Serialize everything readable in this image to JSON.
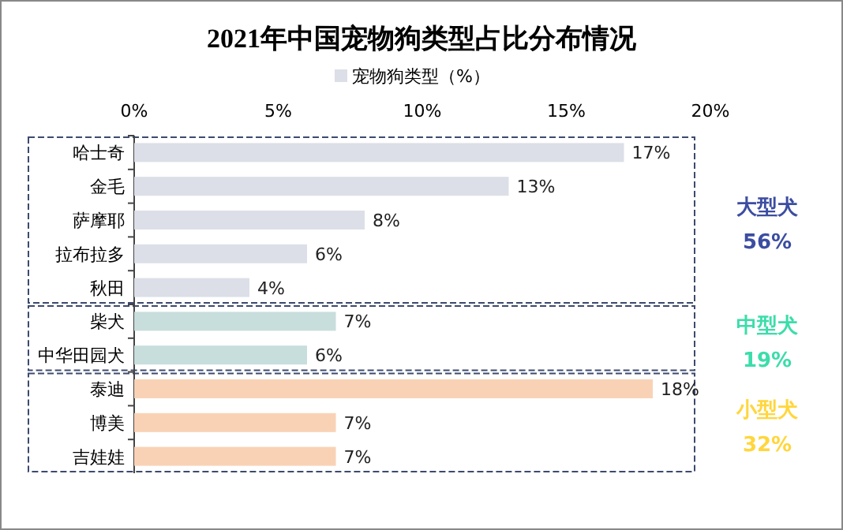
{
  "chart_data": {
    "type": "bar",
    "orientation": "horizontal",
    "title": "2021年中国宠物狗类型占比分布情况",
    "categories": [
      "哈士奇",
      "金毛",
      "萨摩耶",
      "拉布拉多",
      "秋田",
      "柴犬",
      "中华田园犬",
      "泰迪",
      "博美",
      "吉娃娃"
    ],
    "series": [
      {
        "name": "宠物狗类型（%）",
        "color": "#dcdfe7",
        "values": [
          17,
          13,
          8,
          6,
          4,
          7,
          6,
          18,
          7,
          7
        ],
        "colors": [
          "#dcdfe7",
          "#dcdfe7",
          "#dcdfe7",
          "#dcdfe7",
          "#dcdfe7",
          "#c8dedc",
          "#c8dedc",
          "#f9d2b6",
          "#f9d2b6",
          "#f9d2b6"
        ],
        "value_labels": [
          "17%",
          "13%",
          "8%",
          "6%",
          "4%",
          "7%",
          "6%",
          "18%",
          "7%",
          "7%"
        ]
      }
    ],
    "xlim": [
      0,
      20
    ],
    "xticks": [
      {
        "value": 0,
        "label": "0%"
      },
      {
        "value": 5,
        "label": "5%"
      },
      {
        "value": 10,
        "label": "10%"
      },
      {
        "value": 15,
        "label": "15%"
      },
      {
        "value": 20,
        "label": "20%"
      }
    ],
    "annotations": [
      "大型犬\n56%",
      "中型犬\n19%",
      "小型犬\n32%"
    ],
    "legend": "top",
    "grid": false
  }
}
